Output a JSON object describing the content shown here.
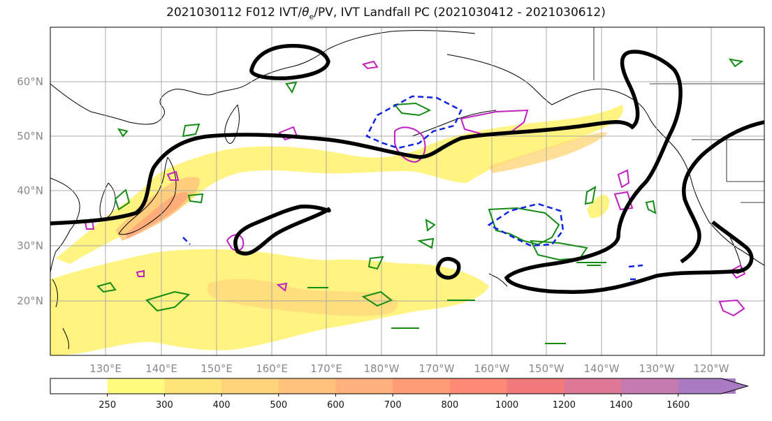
{
  "title": {
    "prefix": "2021030112 F012 IVT/",
    "theta": "θ",
    "theta_sub": "e",
    "suffix": "/PV, IVT Landfall PC (2021030412 - 2021030612)"
  },
  "map": {
    "lat_labels": [
      "60°N",
      "50°N",
      "40°N",
      "30°N",
      "20°N"
    ],
    "lon_labels": [
      "130°E",
      "140°E",
      "150°E",
      "160°E",
      "170°E",
      "180°W",
      "170°W",
      "160°W",
      "150°W",
      "140°W",
      "130°W",
      "120°W"
    ]
  },
  "colorbar": {
    "ticks": [
      "250",
      "300",
      "400",
      "500",
      "600",
      "700",
      "800",
      "1000",
      "1200",
      "1400",
      "1600"
    ],
    "colors": [
      "#ffffff",
      "#fffb7f",
      "#ffe47a",
      "#ffd37c",
      "#ffc27c",
      "#ffb07c",
      "#ff9b77",
      "#fe8974",
      "#f27a7a",
      "#de7896",
      "#c57ab0",
      "#a97bc3"
    ]
  },
  "style_colors": {
    "ivt_fill_low": "#fff27a",
    "ivt_fill_high": "#ff9070",
    "black_contour": "#000000",
    "green_contour": "#148c14",
    "magenta_contour": "#c020c0",
    "blue_contour": "#1024e0"
  }
}
